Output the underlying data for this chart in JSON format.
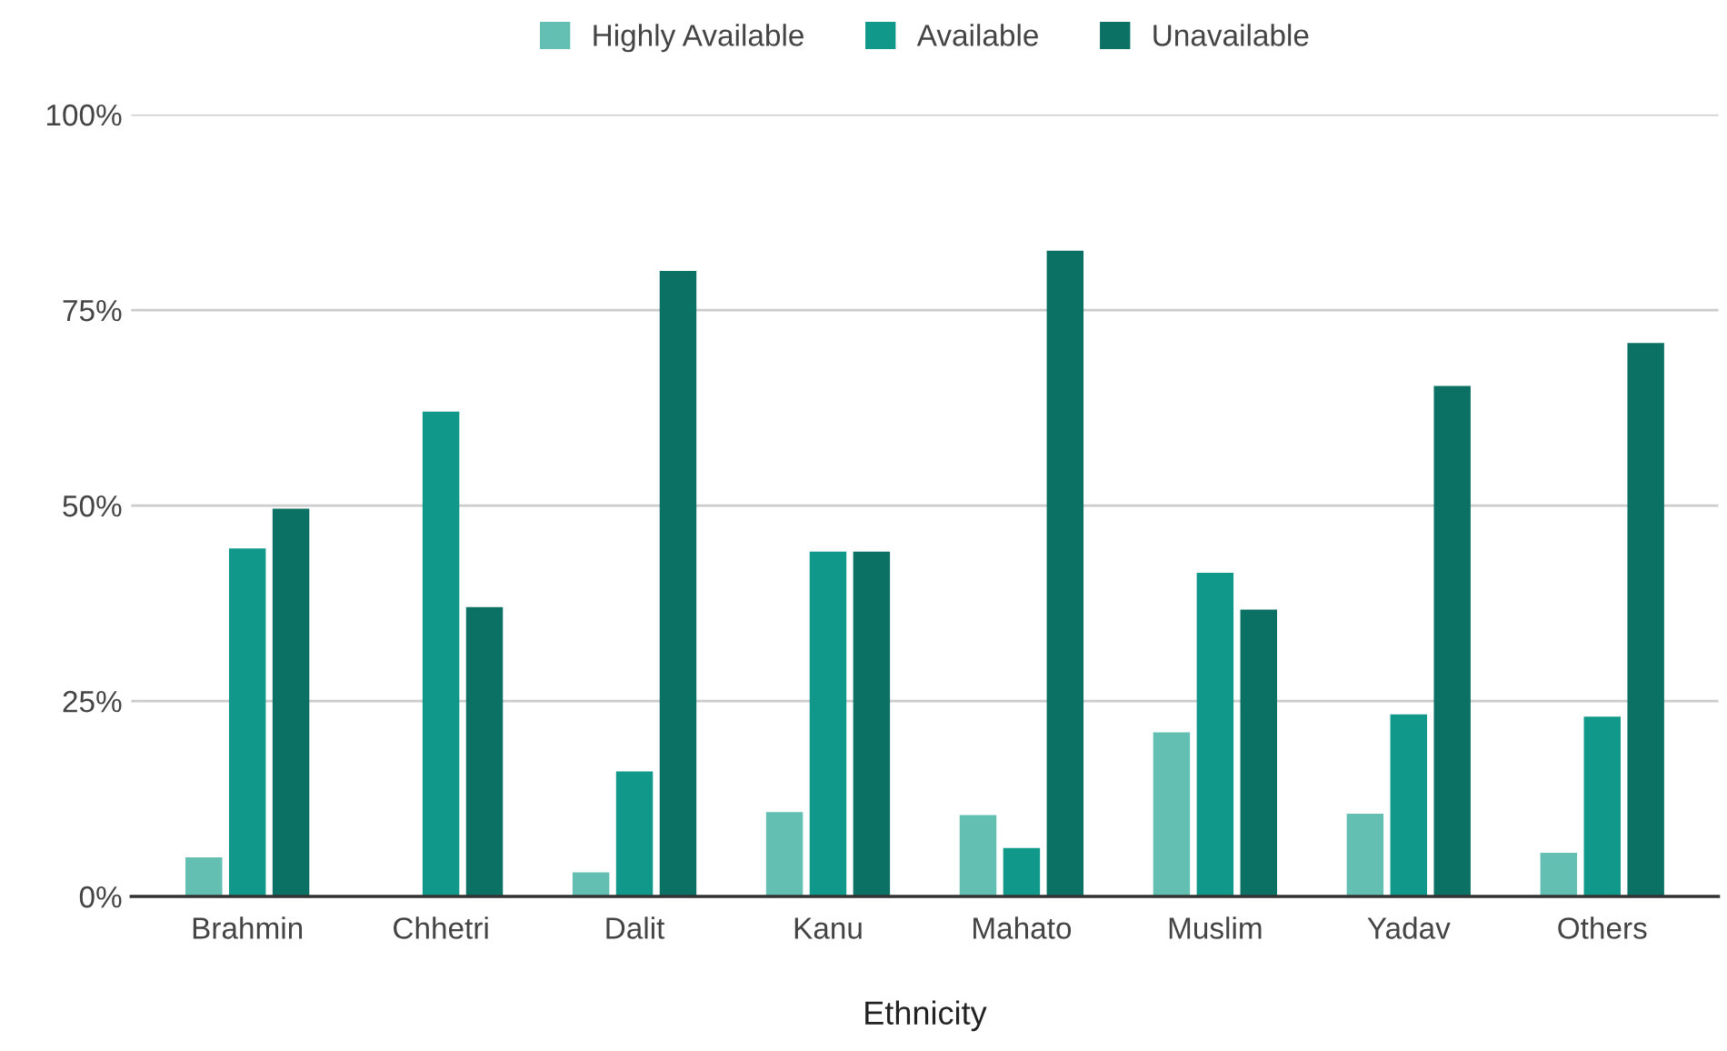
{
  "chart_data": {
    "type": "bar",
    "xlabel": "Ethnicity",
    "categories": [
      "Brahmin",
      "Chhetri",
      "Dalit",
      "Kanu",
      "Mahato",
      "Muslim",
      "Yadav",
      "Others"
    ],
    "series": [
      {
        "name": "Highly Available",
        "color": "#63bfb2",
        "values": [
          5.0,
          0,
          3.1,
          10.8,
          10.4,
          21.0,
          10.6,
          5.6
        ]
      },
      {
        "name": "Available",
        "color": "#10998a",
        "values": [
          44.5,
          62.0,
          16.0,
          44.1,
          6.2,
          41.4,
          23.3,
          23.0
        ]
      },
      {
        "name": "Unavailable",
        "color": "#0c7165",
        "values": [
          49.6,
          37.0,
          80.0,
          44.1,
          82.6,
          36.7,
          65.3,
          70.8
        ]
      }
    ],
    "ylim": [
      0,
      100
    ],
    "yticks": [
      {
        "value": 0,
        "label": "0%"
      },
      {
        "value": 25,
        "label": "25%"
      },
      {
        "value": 50,
        "label": "50%"
      },
      {
        "value": 75,
        "label": "75%"
      },
      {
        "value": 100,
        "label": "100%"
      }
    ],
    "grid": "y",
    "legend": "top"
  }
}
